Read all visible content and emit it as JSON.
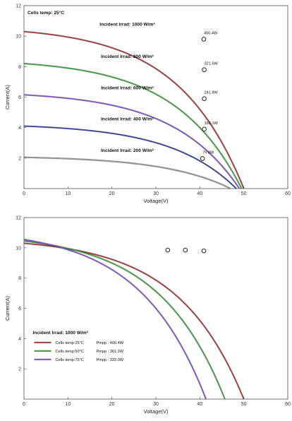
{
  "chart_data": [
    {
      "type": "line",
      "title": "",
      "corner_label": "Cells temp: 25°C",
      "xlabel": "Voltage(V)",
      "ylabel": "Current(A)",
      "xlim": [
        0,
        60
      ],
      "ylim": [
        0,
        12
      ],
      "xticks": [
        "0",
        "10",
        "20",
        "30",
        "40",
        "50",
        "60"
      ],
      "yticks": [
        "2",
        "4",
        "6",
        "8",
        "10",
        "12"
      ],
      "grid": false,
      "series": [
        {
          "name": "Incident Irrad: 1000 W/m²",
          "label": "Incident Irrad: 1000 W/m²",
          "color": "#b03030",
          "isc": 10.3,
          "voc": 50.0,
          "mpp": {
            "v": 40.9,
            "i": 9.8,
            "power_label": "400.4W"
          }
        },
        {
          "name": "Incident Irrad: 800 W/m²",
          "label": "Incident Irrad: 800 W/m²",
          "color": "#3aaa3a",
          "isc": 8.2,
          "voc": 49.5,
          "mpp": {
            "v": 41.0,
            "i": 7.8,
            "power_label": "321.6W"
          }
        },
        {
          "name": "Incident Irrad: 600 W/m²",
          "label": "Incident Irrad: 600 W/m²",
          "color": "#8a4fd8",
          "isc": 6.15,
          "voc": 49.0,
          "mpp": {
            "v": 41.0,
            "i": 5.9,
            "power_label": "241.8W"
          }
        },
        {
          "name": "Incident Irrad: 400 W/m²",
          "label": "Incident Irrad: 400 W/m²",
          "color": "#2c3ea0",
          "isc": 4.1,
          "voc": 48.3,
          "mpp": {
            "v": 41.0,
            "i": 3.9,
            "power_label": "160.1W"
          }
        },
        {
          "name": "Incident Irrad: 200 W/m²",
          "label": "Incident Irrad: 200 W/m²",
          "color": "#999999",
          "isc": 2.05,
          "voc": 47.0,
          "mpp": {
            "v": 40.6,
            "i": 1.97,
            "power_label": "79.8W"
          }
        }
      ]
    },
    {
      "type": "line",
      "title": "",
      "corner_label": "",
      "xlabel": "Voltage(V)",
      "ylabel": "Current(A)",
      "xlim": [
        0,
        60
      ],
      "ylim": [
        0,
        12
      ],
      "xticks": [
        "0",
        "10",
        "20",
        "30",
        "40",
        "50",
        "60"
      ],
      "yticks": [
        "2",
        "4",
        "6",
        "8",
        "10",
        "12"
      ],
      "grid": false,
      "legend_title": "Incident Irrad: 1000 W/m²",
      "legend_position": "lower-left",
      "series": [
        {
          "name": "Cells temp:25°C",
          "pmpp_label": "Pmpp : 400.4W",
          "color": "#b03030",
          "isc": 10.3,
          "voc": 50.0,
          "mpp": {
            "v": 40.9,
            "i": 9.8
          }
        },
        {
          "name": "Cells temp:50°C",
          "pmpp_label": "Pmpp : 361.2W",
          "color": "#3aaa3a",
          "isc": 10.45,
          "voc": 45.7,
          "mpp": {
            "v": 36.7,
            "i": 9.85
          }
        },
        {
          "name": "Cells temp:75°C",
          "pmpp_label": "Pmpp : 322.0W",
          "color": "#8a4fd8",
          "isc": 10.55,
          "voc": 41.4,
          "mpp": {
            "v": 32.7,
            "i": 9.85
          }
        }
      ]
    }
  ]
}
